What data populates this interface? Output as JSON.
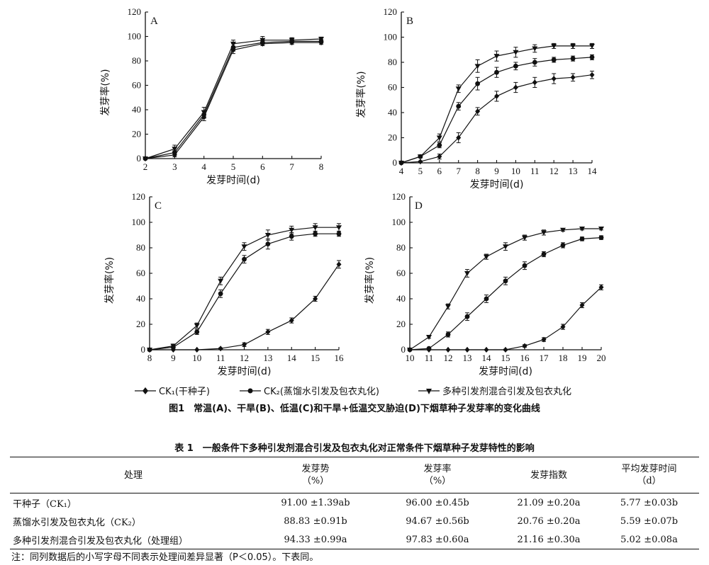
{
  "chart_data": [
    {
      "type": "line",
      "panel_label": "A",
      "xlabel": "发芽时间(d)",
      "ylabel": "发芽率(%)",
      "x": [
        2,
        3,
        4,
        5,
        6,
        7,
        8
      ],
      "xlim": [
        2,
        8
      ],
      "ylim": [
        0,
        120
      ],
      "yticks": [
        0,
        20,
        40,
        60,
        80,
        100,
        120
      ],
      "series": [
        {
          "marker": "diamond",
          "values": [
            0,
            3,
            34,
            89,
            94,
            95,
            95
          ],
          "err": [
            0,
            1.5,
            3,
            3,
            1.5,
            1.5,
            1.5
          ]
        },
        {
          "marker": "circle",
          "values": [
            0,
            5,
            36,
            91,
            95,
            96,
            96
          ],
          "err": [
            0,
            1.5,
            3,
            3,
            1.5,
            1.5,
            1.5
          ]
        },
        {
          "marker": "triangle",
          "values": [
            0,
            8,
            38,
            94,
            97,
            97,
            98
          ],
          "err": [
            0,
            3,
            4,
            3,
            3,
            2,
            1.5
          ]
        }
      ]
    },
    {
      "type": "line",
      "panel_label": "B",
      "xlabel": "发芽时间(d)",
      "ylabel": "发芽率(%)",
      "x": [
        4,
        5,
        6,
        7,
        8,
        9,
        10,
        11,
        12,
        13,
        14
      ],
      "xlim": [
        4,
        14
      ],
      "ylim": [
        0,
        120
      ],
      "yticks": [
        0,
        20,
        40,
        60,
        80,
        100,
        120
      ],
      "series": [
        {
          "marker": "diamond",
          "values": [
            0,
            1,
            5,
            20,
            41,
            53,
            60,
            64,
            67,
            68,
            70
          ],
          "err": [
            0,
            0.5,
            2,
            4,
            3,
            4,
            4,
            4,
            4,
            3,
            3
          ]
        },
        {
          "marker": "circle",
          "values": [
            0,
            5,
            14,
            45,
            63,
            72,
            77,
            80,
            82,
            83,
            84
          ],
          "err": [
            0,
            1,
            2,
            3,
            5,
            4,
            3,
            3,
            2,
            2,
            2
          ]
        },
        {
          "marker": "triangle",
          "values": [
            0,
            5,
            20,
            59,
            77,
            85,
            88,
            91,
            93,
            93,
            93
          ],
          "err": [
            0,
            1,
            3,
            3,
            5,
            4,
            4,
            3,
            2,
            2,
            2
          ]
        }
      ]
    },
    {
      "type": "line",
      "panel_label": "C",
      "xlabel": "发芽时间(d)",
      "ylabel": "发芽率(%)",
      "x": [
        8,
        9,
        10,
        11,
        12,
        13,
        14,
        15,
        16
      ],
      "xlim": [
        8,
        16
      ],
      "ylim": [
        0,
        120
      ],
      "yticks": [
        0,
        20,
        40,
        60,
        80,
        100,
        120
      ],
      "series": [
        {
          "marker": "diamond",
          "values": [
            0,
            0,
            0,
            1,
            4,
            14,
            23,
            40,
            67
          ],
          "err": [
            0,
            0,
            0,
            0.5,
            1.5,
            2,
            2,
            2,
            3
          ]
        },
        {
          "marker": "circle",
          "values": [
            0,
            2,
            14,
            44,
            71,
            83,
            89,
            91,
            91
          ],
          "err": [
            0,
            1,
            2,
            3,
            3,
            4,
            3,
            2,
            2
          ]
        },
        {
          "marker": "triangle",
          "values": [
            0,
            3,
            19,
            54,
            81,
            90,
            94,
            96,
            96
          ],
          "err": [
            0,
            1.5,
            2,
            3,
            3,
            4,
            3,
            3,
            3
          ]
        }
      ]
    },
    {
      "type": "line",
      "panel_label": "D",
      "xlabel": "发芽时间(d)",
      "ylabel": "发芽率(%)",
      "x": [
        10,
        11,
        12,
        13,
        14,
        15,
        16,
        17,
        18,
        19,
        20
      ],
      "xlim": [
        10,
        20
      ],
      "ylim": [
        0,
        120
      ],
      "yticks": [
        0,
        20,
        40,
        60,
        80,
        100,
        120
      ],
      "series": [
        {
          "marker": "diamond",
          "values": [
            0,
            0,
            0,
            0,
            0,
            0,
            3,
            8,
            18,
            35,
            49
          ],
          "err": [
            0,
            0,
            0,
            0,
            0,
            0.5,
            1,
            1.5,
            2,
            2,
            2
          ]
        },
        {
          "marker": "circle",
          "values": [
            0,
            1,
            12,
            26,
            40,
            54,
            66,
            75,
            82,
            87,
            88
          ],
          "err": [
            0,
            0.5,
            2,
            3,
            3,
            3,
            3,
            2,
            2,
            1.5,
            1.5
          ]
        },
        {
          "marker": "triangle",
          "values": [
            0,
            10,
            34,
            60,
            73,
            81,
            88,
            92,
            94,
            95,
            95
          ],
          "err": [
            0,
            1,
            2,
            3,
            2,
            3,
            2,
            2,
            1,
            1,
            1
          ]
        }
      ]
    }
  ],
  "legend": [
    {
      "marker": "diamond",
      "label": "CK₁(干种子)"
    },
    {
      "marker": "circle",
      "label": "CK₂(蒸馏水引发及包衣丸化)"
    },
    {
      "marker": "triangle",
      "label": "多种引发剂混合引发及包衣丸化"
    }
  ],
  "figure_caption": "图1　常温(A)、干旱(B)、低温(C)和干旱+低温交叉胁迫(D)下烟草种子发芽率的变化曲线",
  "table": {
    "title": "表 1　一般条件下多种引发剂混合引发及包衣丸化对正常条件下烟草种子发芽特性的影响",
    "headers": [
      {
        "line1": "处理",
        "line2": ""
      },
      {
        "line1": "发芽势",
        "line2": "（%）"
      },
      {
        "line1": "发芽率",
        "line2": "（%）"
      },
      {
        "line1": "发芽指数",
        "line2": ""
      },
      {
        "line1": "平均发芽时间",
        "line2": "（d）"
      }
    ],
    "rows": [
      [
        "干种子（CK₁）",
        "91.00 ±1.39ab",
        "96.00 ±0.45b",
        "21.09 ±0.20a",
        "5.77 ±0.03b"
      ],
      [
        "蒸馏水引发及包衣丸化（CK₂）",
        "88.83 ±0.91b",
        "94.67 ±0.56b",
        "20.76 ±0.20a",
        "5.59 ±0.07b"
      ],
      [
        "多种引发剂混合引发及包衣丸化（处理组）",
        "94.33 ±0.99a",
        "97.83 ±0.60a",
        "21.16 ±0.30a",
        "5.02 ±0.08a"
      ]
    ],
    "note": "注：同列数据后的小写字母不同表示处理间差异显著（P＜0.05）。下表同。"
  }
}
